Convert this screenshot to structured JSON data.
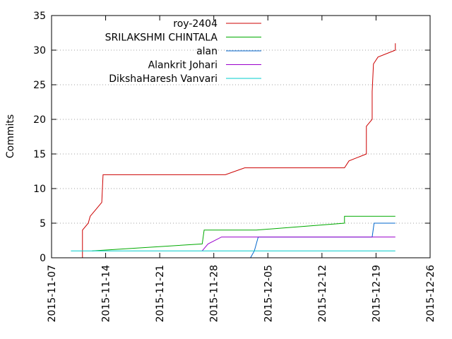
{
  "chart_data": {
    "type": "line",
    "title": "",
    "xlabel": "",
    "ylabel": "Commits",
    "x_ticks": [
      "2015-11-07",
      "2015-11-14",
      "2015-11-21",
      "2015-11-28",
      "2015-12-05",
      "2015-12-12",
      "2015-12-19",
      "2015-12-26"
    ],
    "xlim": [
      "2015-11-07",
      "2015-12-26"
    ],
    "y_ticks": [
      0,
      5,
      10,
      15,
      20,
      25,
      30,
      35
    ],
    "ylim": [
      0,
      35
    ],
    "grid": "horizontal dotted",
    "legend_position": "top-right",
    "series": [
      {
        "name": "roy-2404",
        "color": "#cc0000",
        "points": [
          [
            "2015-11-09T12:00",
            0
          ],
          [
            "2015-11-11T00:00",
            0
          ],
          [
            "2015-11-11T00:00",
            4
          ],
          [
            "2015-11-11T18:00",
            5
          ],
          [
            "2015-11-12T00:00",
            6
          ],
          [
            "2015-11-12T18:00",
            7
          ],
          [
            "2015-11-13T12:00",
            8
          ],
          [
            "2015-11-13T16:00",
            12
          ],
          [
            "2015-11-29T12:00",
            12
          ],
          [
            "2015-12-02T00:00",
            13
          ],
          [
            "2015-12-14T22:00",
            13
          ],
          [
            "2015-12-15T12:00",
            14
          ],
          [
            "2015-12-17T18:00",
            15
          ],
          [
            "2015-12-17T18:00",
            19
          ],
          [
            "2015-12-18T12:00",
            20
          ],
          [
            "2015-12-18T12:00",
            24
          ],
          [
            "2015-12-18T16:00",
            28
          ],
          [
            "2015-12-19T06:00",
            29
          ],
          [
            "2015-12-21T12:00",
            30
          ],
          [
            "2015-12-21T12:00",
            31
          ]
        ]
      },
      {
        "name": "SRILAKSHMI CHINTALA",
        "color": "#00aa00",
        "points": [
          [
            "2015-11-12T06:00",
            1
          ],
          [
            "2015-11-26T12:00",
            2
          ],
          [
            "2015-11-26T18:00",
            4
          ],
          [
            "2015-12-03T12:00",
            4
          ],
          [
            "2015-12-14T22:00",
            5
          ],
          [
            "2015-12-14T22:00",
            6
          ],
          [
            "2015-12-21T12:00",
            6
          ]
        ]
      },
      {
        "name": "alan",
        "color": "#0066cc",
        "points": [
          [
            "2015-12-02T18:00",
            0
          ],
          [
            "2015-12-03T06:00",
            1
          ],
          [
            "2015-12-03T18:00",
            3
          ],
          [
            "2015-12-18T12:00",
            3
          ],
          [
            "2015-12-18T18:00",
            5
          ],
          [
            "2015-12-21T12:00",
            5
          ]
        ]
      },
      {
        "name": "Alankrit Johari",
        "color": "#9900cc",
        "points": [
          [
            "2015-11-26T12:00",
            1
          ],
          [
            "2015-11-27T06:00",
            2
          ],
          [
            "2015-11-29T00:00",
            3
          ],
          [
            "2015-12-21T12:00",
            3
          ]
        ]
      },
      {
        "name": "DikshaHaresh Vanvari",
        "color": "#00cccc",
        "points": [
          [
            "2015-11-09T12:00",
            1
          ],
          [
            "2015-12-21T12:00",
            1
          ]
        ]
      }
    ]
  }
}
